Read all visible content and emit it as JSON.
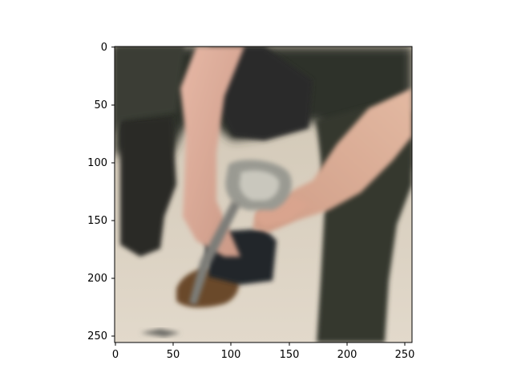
{
  "figure": {
    "x_ticks": [
      "0",
      "50",
      "100",
      "150",
      "200",
      "250"
    ],
    "y_ticks": [
      "0",
      "50",
      "100",
      "150",
      "200",
      "250"
    ],
    "image_subject": "farrier-shaping-horse-hoof-photo"
  },
  "colors": {
    "background": "#ffffff",
    "axis": "#000000",
    "ground": "#d9cfc0",
    "horse_leg": "#2f302c",
    "skin": "#d7a794",
    "tool_metal": "#8a8a84",
    "hoof": "#6a4a2c"
  }
}
